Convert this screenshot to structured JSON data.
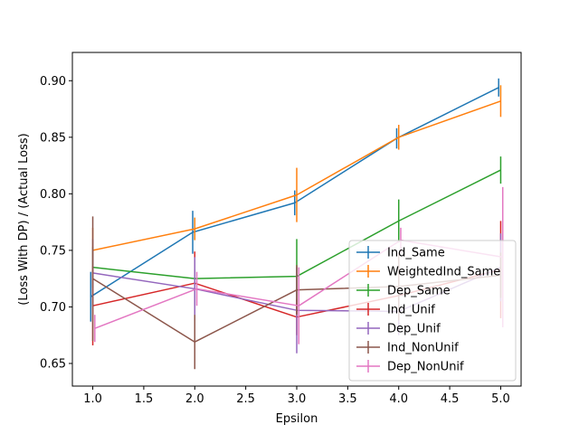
{
  "chart_data": {
    "type": "line",
    "title": "",
    "xlabel": "Epsilon",
    "ylabel": "(Loss With DP) / (Actual Loss)",
    "xlim": [
      0.8,
      5.2
    ],
    "ylim": [
      0.63,
      0.925
    ],
    "xticks": [
      "1.0",
      "1.5",
      "2.0",
      "2.5",
      "3.0",
      "3.5",
      "4.0",
      "4.5",
      "5.0"
    ],
    "yticks": [
      "0.65",
      "0.70",
      "0.75",
      "0.80",
      "0.85",
      "0.90"
    ],
    "xtick_values": [
      1.0,
      1.5,
      2.0,
      2.5,
      3.0,
      3.5,
      4.0,
      4.5,
      5.0
    ],
    "ytick_values": [
      0.65,
      0.7,
      0.75,
      0.8,
      0.85,
      0.9
    ],
    "x": [
      1,
      2,
      3,
      4,
      5
    ],
    "grid": false,
    "legend_position": "lower-right",
    "series": [
      {
        "name": "Ind_Same",
        "color": "#1f77b4",
        "offset": -0.02,
        "values": [
          0.709,
          0.766,
          0.792,
          0.849,
          0.894
        ],
        "errors": [
          0.022,
          0.019,
          0.011,
          0.009,
          0.008
        ]
      },
      {
        "name": "WeightedInd_Same",
        "color": "#ff7f0e",
        "offset": 0.0,
        "values": [
          0.75,
          0.769,
          0.799,
          0.85,
          0.882
        ],
        "errors": [
          0.02,
          0.01,
          0.024,
          0.011,
          0.014
        ]
      },
      {
        "name": "Dep_Same",
        "color": "#2ca02c",
        "offset": 0.0,
        "values": [
          0.735,
          0.725,
          0.727,
          0.776,
          0.821
        ],
        "errors": [
          0.018,
          0.008,
          0.033,
          0.019,
          0.012
        ]
      },
      {
        "name": "Ind_Unif",
        "color": "#d62728",
        "offset": 0.0,
        "values": [
          0.701,
          0.721,
          0.691,
          0.71,
          0.733
        ],
        "errors": [
          0.035,
          0.028,
          0.016,
          0.015,
          0.043
        ]
      },
      {
        "name": "Dep_Unif",
        "color": "#9467bd",
        "offset": 0.0,
        "values": [
          0.73,
          0.716,
          0.697,
          0.696,
          0.735
        ],
        "errors": [
          0.03,
          0.028,
          0.038,
          0.021,
          0.03
        ]
      },
      {
        "name": "Ind_NonUnif",
        "color": "#8c564b",
        "offset": 0.0,
        "values": [
          0.725,
          0.669,
          0.715,
          0.718,
          0.728
        ],
        "errors": [
          0.055,
          0.024,
          0.022,
          0.03,
          0.02
        ]
      },
      {
        "name": "Dep_NonUnif",
        "color": "#e377c2",
        "offset": 0.02,
        "values": [
          0.681,
          0.716,
          0.701,
          0.759,
          0.744
        ],
        "errors": [
          0.012,
          0.015,
          0.034,
          0.011,
          0.062
        ]
      }
    ]
  }
}
